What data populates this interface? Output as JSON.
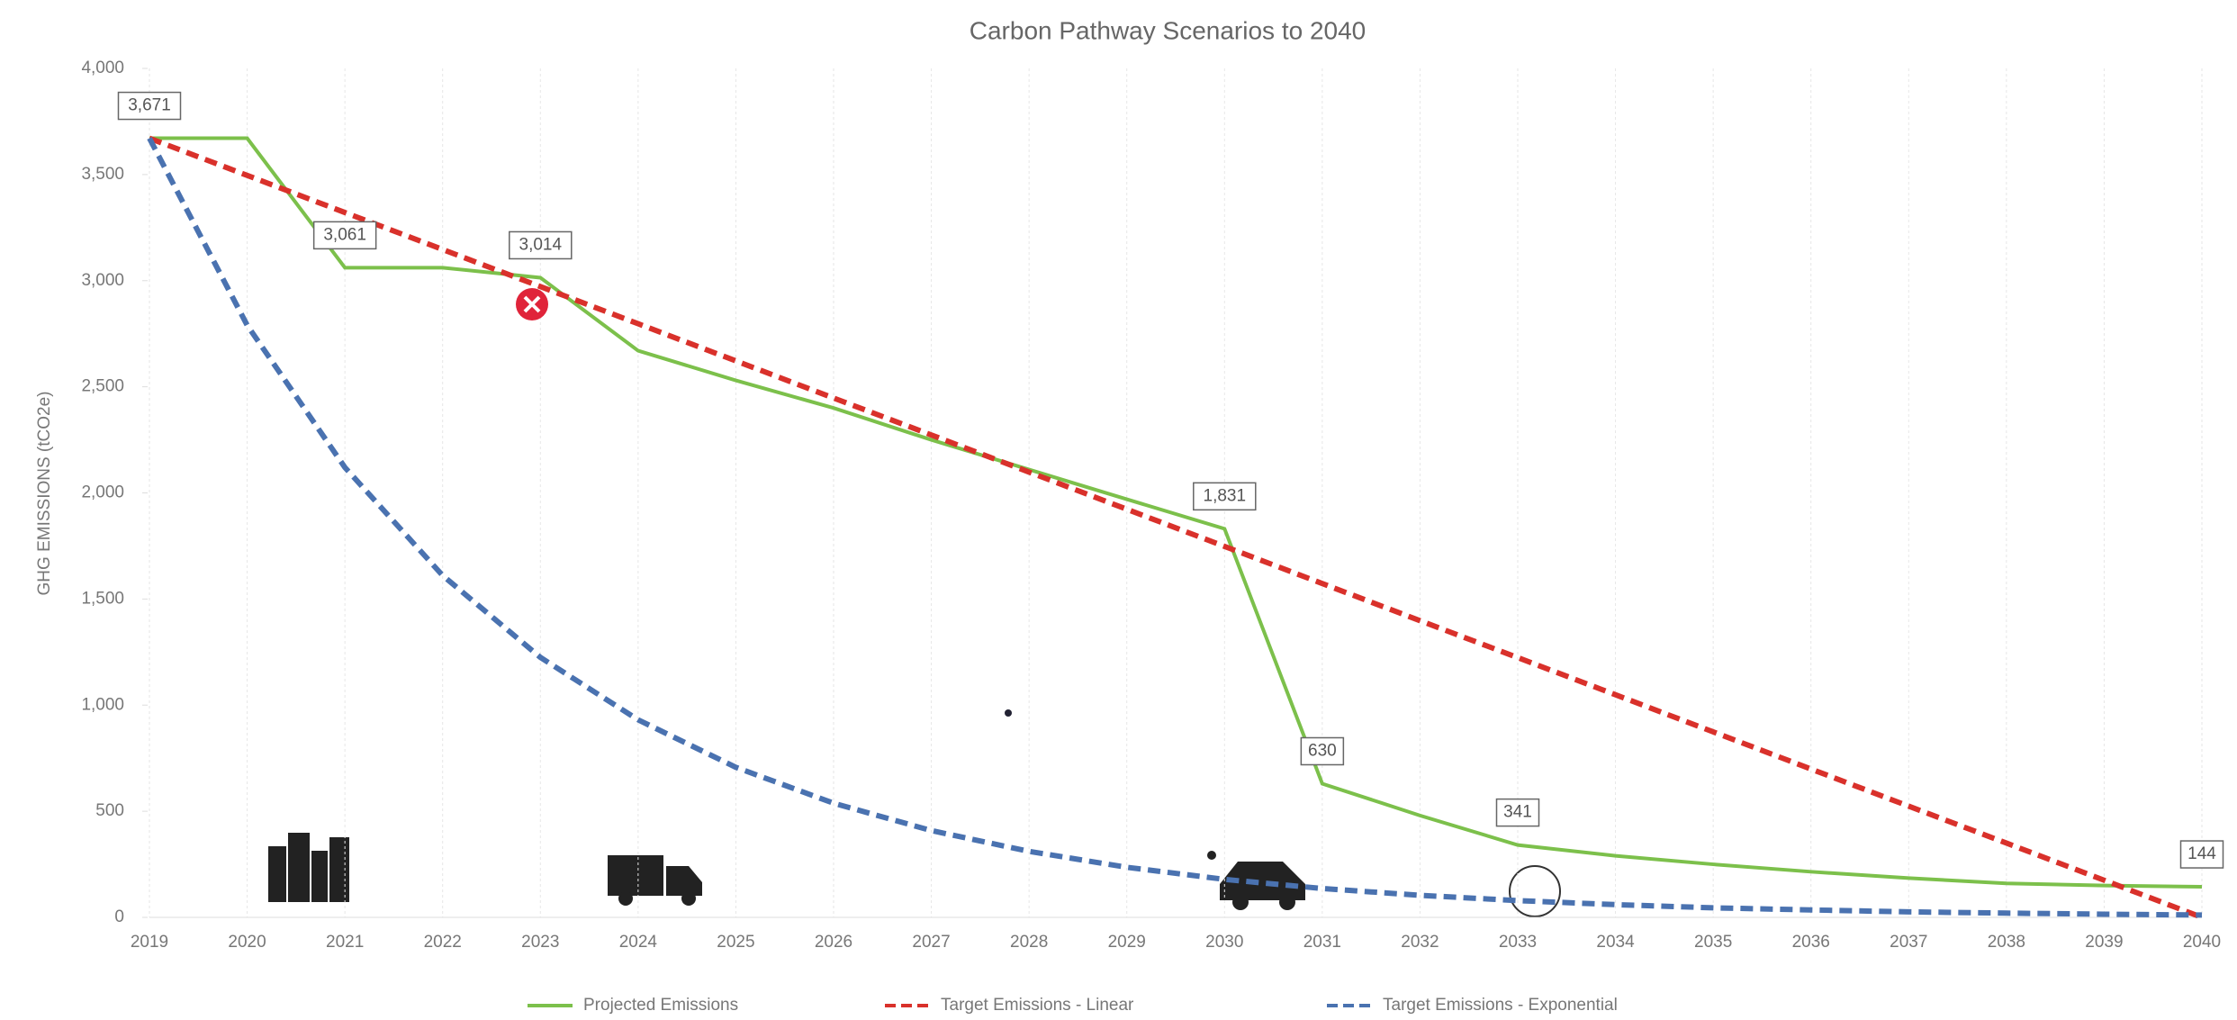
{
  "chart_data": {
    "type": "line",
    "title": "Carbon Pathway Scenarios to 2040",
    "y_label": "GHG EMISSIONS (tCO2e)",
    "categories": [
      "2019",
      "2020",
      "2021",
      "2022",
      "2023",
      "2024",
      "2025",
      "2026",
      "2027",
      "2028",
      "2029",
      "2030",
      "2031",
      "2032",
      "2033",
      "2034",
      "2035",
      "2036",
      "2037",
      "2038",
      "2039",
      "2040"
    ],
    "ylim": [
      0,
      4000
    ],
    "yticks": [
      0,
      500,
      {
        "value": 1000,
        "label": "1,000"
      },
      {
        "value": 1500,
        "label": "1,500"
      },
      {
        "value": 2000,
        "label": "2,000"
      },
      {
        "value": 2500,
        "label": "2,500"
      },
      {
        "value": 3000,
        "label": "3,000"
      },
      {
        "value": 3500,
        "label": "3,500"
      },
      {
        "value": 4000,
        "label": "4,000"
      }
    ],
    "grid": "x",
    "legend": "bottom",
    "series": [
      {
        "name": "Projected Emissions",
        "color": "#7cc04b",
        "dash": "solid",
        "values": [
          3671,
          3671,
          3061,
          3061,
          3014,
          2670,
          2530,
          2400,
          2250,
          2110,
          1970,
          1831,
          630,
          480,
          341,
          290,
          250,
          215,
          185,
          160,
          150,
          144
        ],
        "value_labels": [
          "3,671",
          null,
          "3,061",
          null,
          "3,014",
          null,
          null,
          null,
          null,
          null,
          null,
          "1,831",
          "630",
          null,
          "341",
          null,
          null,
          null,
          null,
          null,
          null,
          "144"
        ]
      },
      {
        "name": "Target Emissions - Linear",
        "color": "#d9312b",
        "dash": "dashed",
        "values": [
          3671,
          3496,
          3321,
          3147,
          2972,
          2797,
          2622,
          2447,
          2273,
          2098,
          1923,
          1748,
          1573,
          1398,
          1224,
          1049,
          874,
          699,
          524,
          350,
          175,
          0
        ]
      },
      {
        "name": "Target Emissions - Exponential",
        "color": "#4a72b0",
        "dash": "dashed",
        "values": [
          3671,
          2790,
          2120,
          1611,
          1225,
          931,
          707,
          538,
          409,
          311,
          236,
          179,
          136,
          104,
          79,
          60,
          45,
          35,
          26,
          20,
          15,
          11
        ]
      }
    ]
  }
}
